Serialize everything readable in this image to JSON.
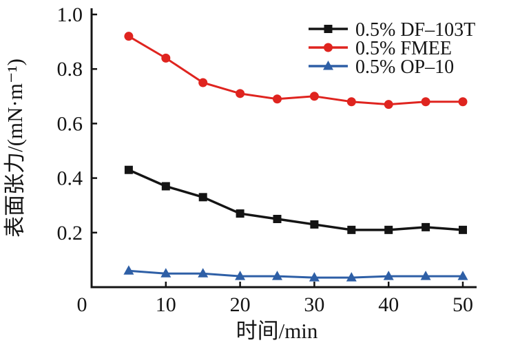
{
  "chart_data": {
    "type": "line",
    "title": "",
    "xlabel": "时间/min",
    "ylabel": "表面张力/(mN·m⁻¹)",
    "x": [
      5,
      10,
      15,
      20,
      25,
      30,
      35,
      40,
      45,
      50
    ],
    "series": [
      {
        "name": "0.5% DF–103T",
        "color": "#141414",
        "marker": "square",
        "values": [
          0.43,
          0.37,
          0.33,
          0.27,
          0.25,
          0.23,
          0.21,
          0.21,
          0.22,
          0.21
        ]
      },
      {
        "name": "0.5% FMEE",
        "color": "#df241f",
        "marker": "circle",
        "values": [
          0.92,
          0.84,
          0.75,
          0.71,
          0.69,
          0.7,
          0.68,
          0.67,
          0.68,
          0.68
        ]
      },
      {
        "name": "0.5% OP–10",
        "color": "#2e5fa6",
        "marker": "triangle",
        "values": [
          0.06,
          0.05,
          0.05,
          0.04,
          0.04,
          0.035,
          0.035,
          0.04,
          0.04,
          0.04
        ]
      }
    ],
    "xlim": [
      0,
      50
    ],
    "ylim": [
      0,
      1.0
    ],
    "x_ticks": [
      0,
      10,
      20,
      30,
      40,
      50
    ],
    "y_ticks": [
      0,
      0.2,
      0.4,
      0.6,
      0.8,
      1.0
    ],
    "grid": false,
    "legend_position": "top-right-inside",
    "axis_color": "#141414",
    "origin_label": "0"
  }
}
